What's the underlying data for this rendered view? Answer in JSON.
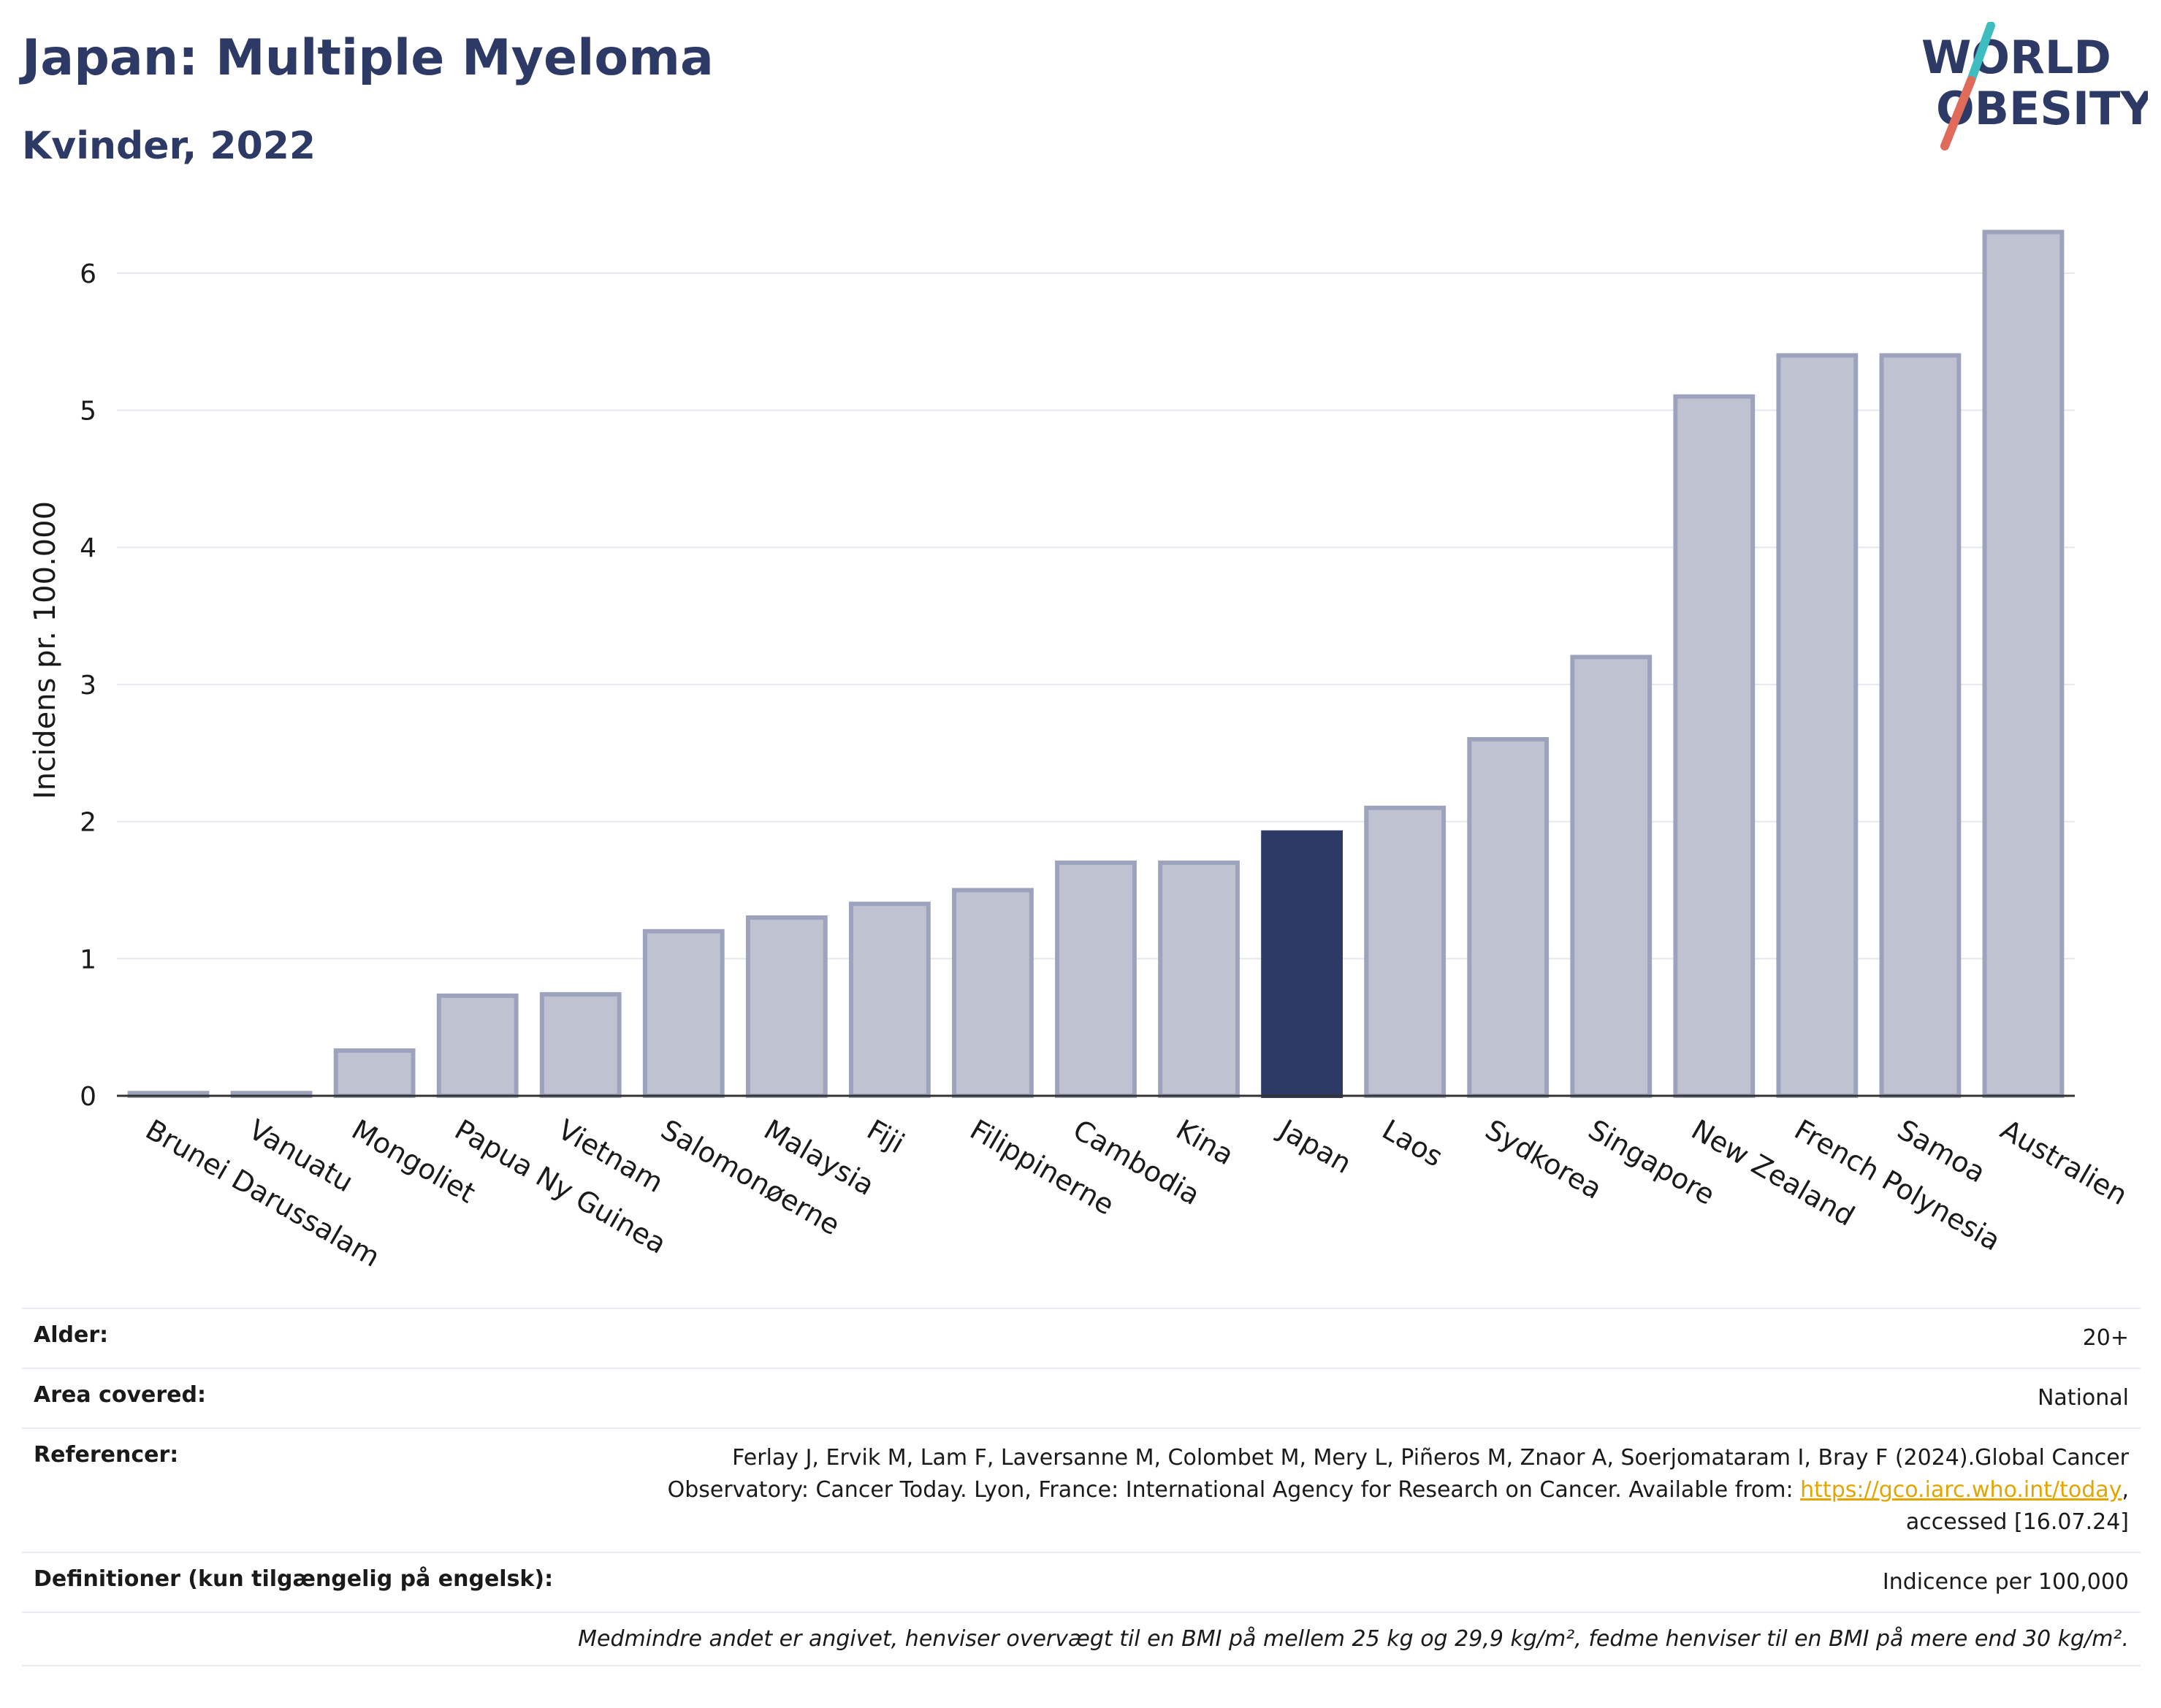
{
  "header": {
    "title": "Japan: Multiple Myeloma",
    "subtitle": "Kvinder, 2022"
  },
  "logo": {
    "line1": "WORLD",
    "line2": "OBESITY"
  },
  "chart_data": {
    "type": "bar",
    "title": "Japan: Multiple Myeloma",
    "subtitle": "Kvinder, 2022",
    "xlabel": "",
    "ylabel": "Incidens pr. 100.000",
    "ylim": [
      0,
      6.5
    ],
    "yticks": [
      0,
      1,
      2,
      3,
      4,
      5,
      6
    ],
    "grid": true,
    "highlight": "Japan",
    "colors": {
      "bar": "#2e3a66",
      "bar_fill_muted": "#bfc2d1",
      "bar_stroke_muted": "#9ea3bd"
    },
    "categories": [
      "Brunei Darussalam",
      "Vanuatu",
      "Mongoliet",
      "Papua Ny Guinea",
      "Vietnam",
      "Salomonøerne",
      "Malaysia",
      "Fiji",
      "Filippinerne",
      "Cambodia",
      "Kina",
      "Japan",
      "Laos",
      "Sydkorea",
      "Singapore",
      "New Zealand",
      "French Polynesia",
      "Samoa",
      "Australien"
    ],
    "values": [
      0.02,
      0.02,
      0.33,
      0.73,
      0.74,
      1.2,
      1.3,
      1.4,
      1.5,
      1.7,
      1.7,
      1.92,
      2.1,
      2.6,
      3.2,
      5.1,
      5.4,
      5.4,
      6.3
    ]
  },
  "meta": {
    "age_label": "Alder:",
    "age_value": "20+",
    "area_label": "Area covered:",
    "area_value": "National",
    "ref_label": "Referencer:",
    "ref_line1": "Ferlay J, Ervik M, Lam F, Laversanne M, Colombet M, Mery L, Piñeros M, Znaor A, Soerjomataram I, Bray F (2024).Global Cancer",
    "ref_line2": "Observatory: Cancer Today. Lyon, France: International Agency for Research on Cancer. Available from:",
    "ref_link": "https://gco.iarc.who.int/today",
    "ref_line3": "accessed [16.07.24]",
    "def_label": "Definitioner (kun tilgængelig på engelsk):",
    "def_value": "Indicence per 100,000",
    "note": "Medmindre andet er angivet, henviser overvægt til en BMI på mellem 25 kg og 29,9 kg/m², fedme henviser til en BMI på mere end 30 kg/m²."
  }
}
